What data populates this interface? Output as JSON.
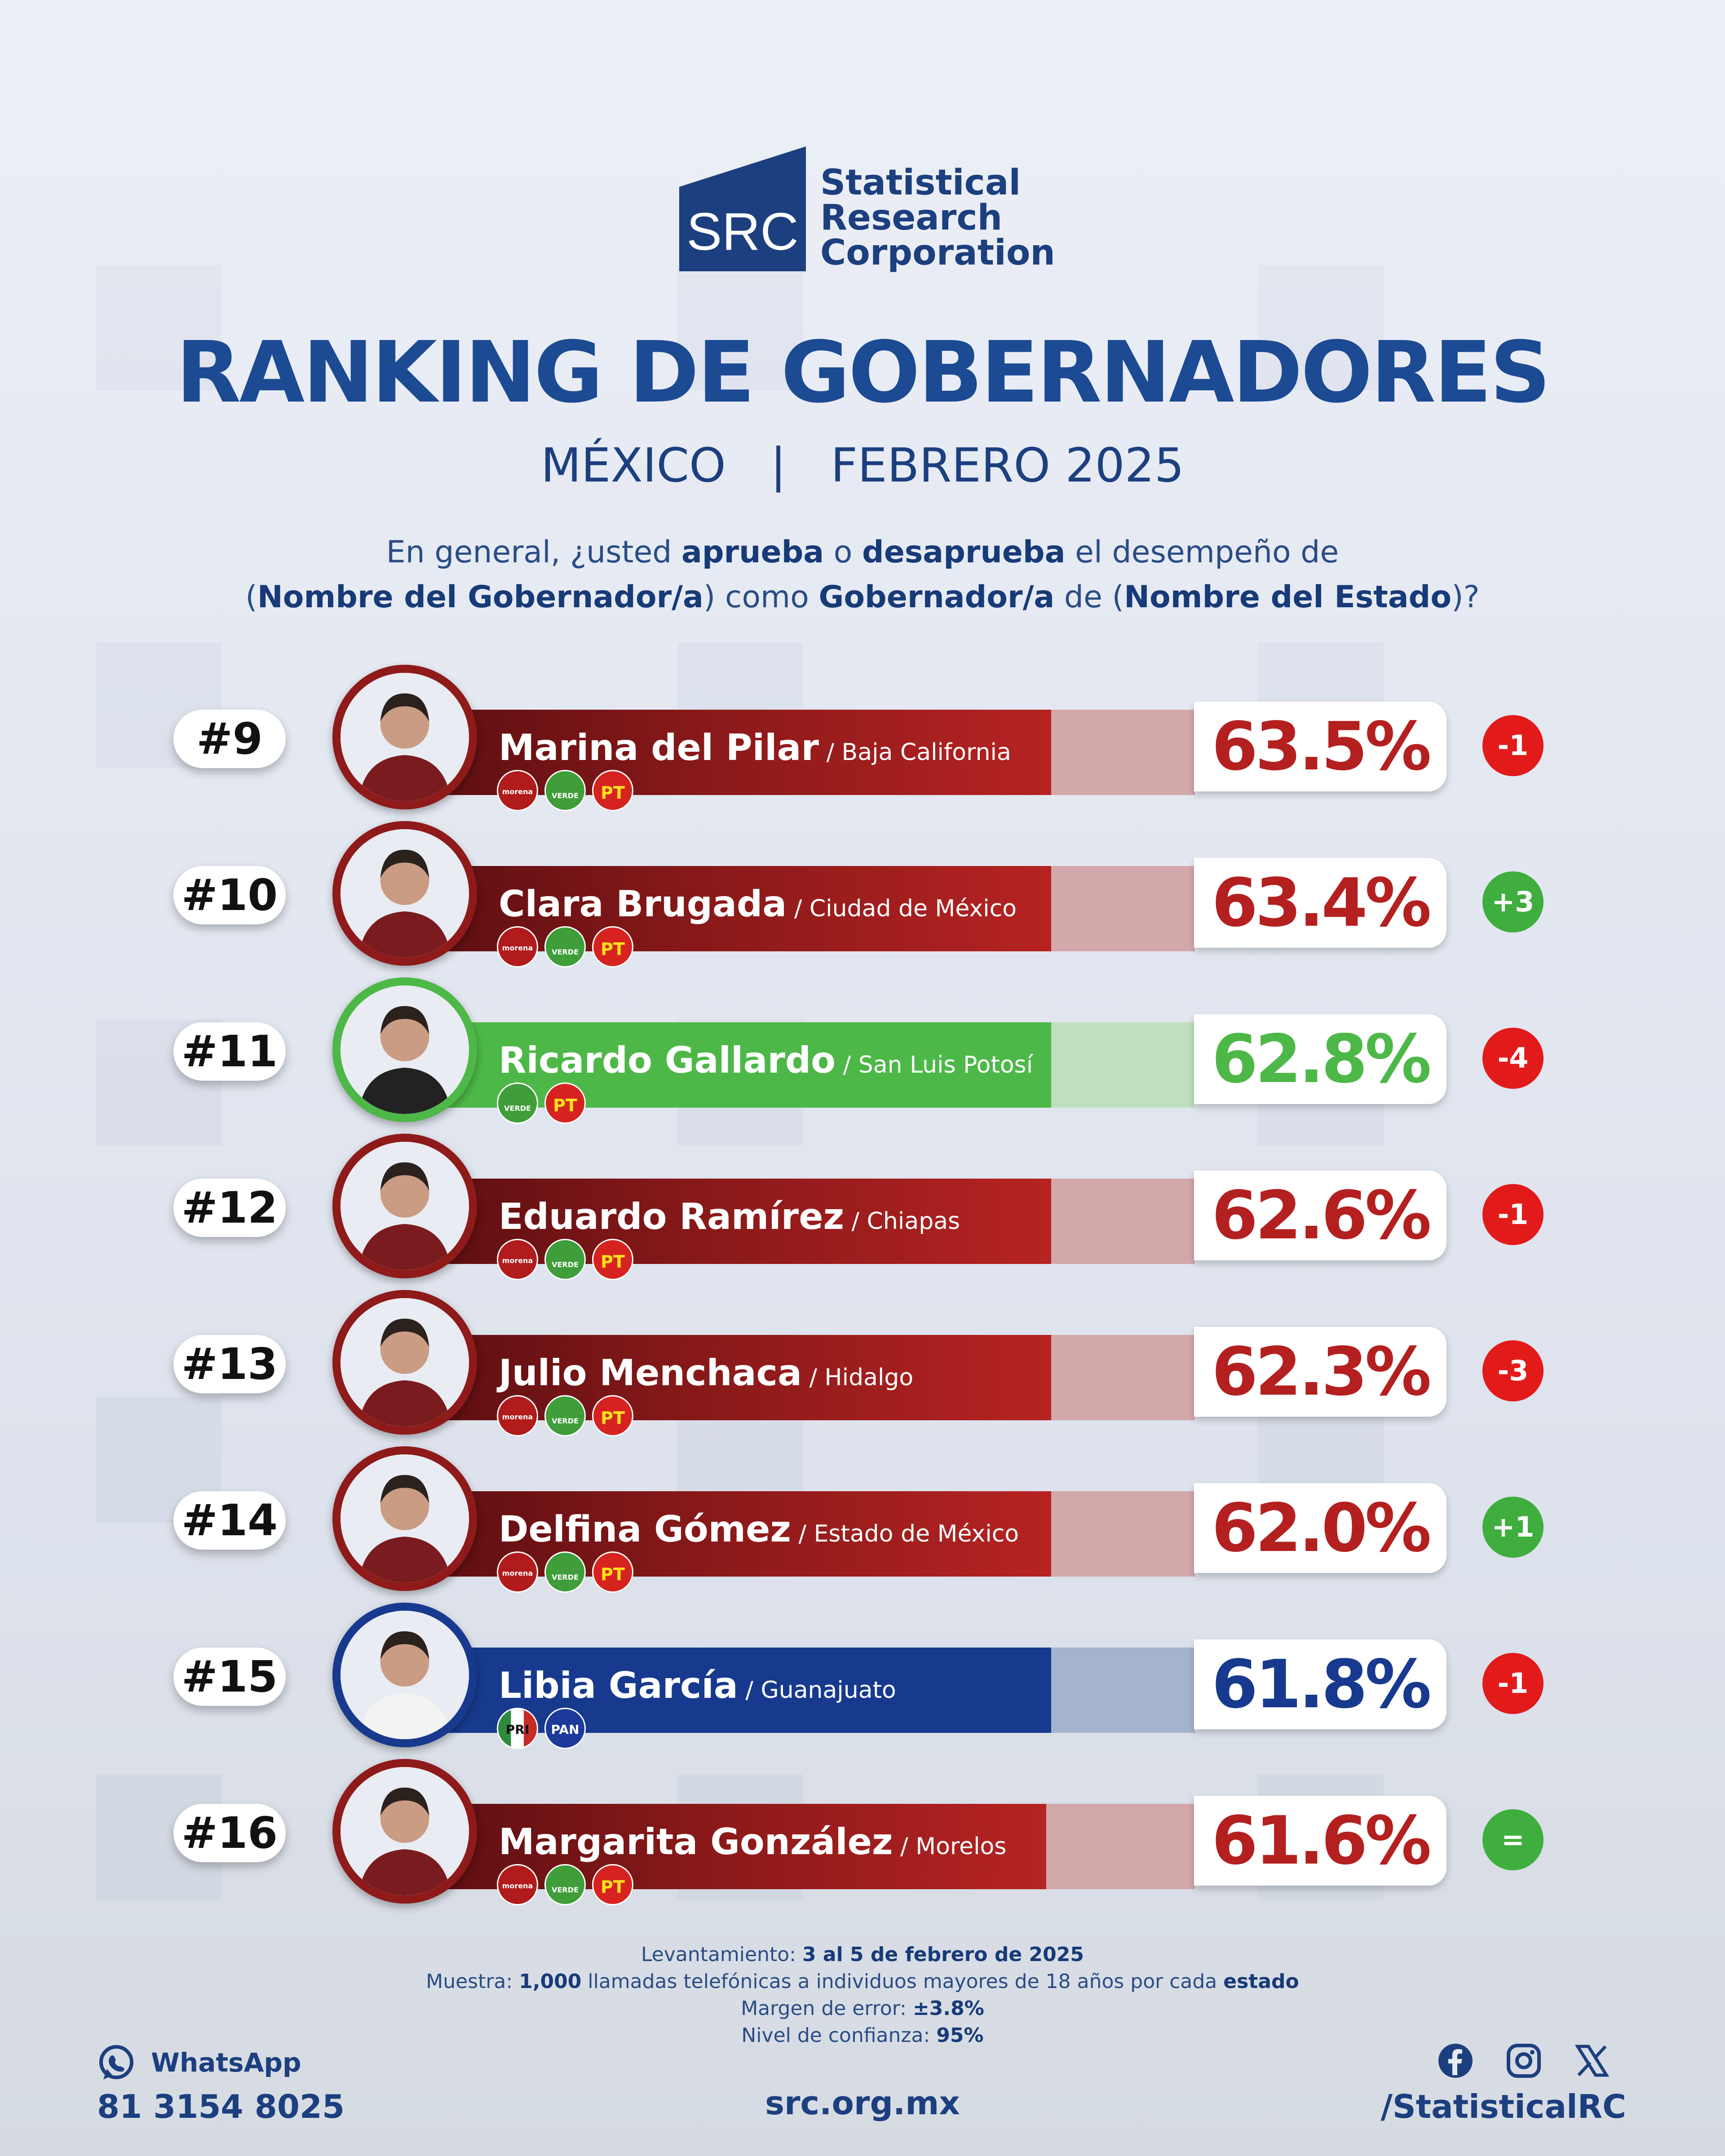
{
  "brand": {
    "mark": "SRC",
    "line1": "Statistical",
    "line2": "Research",
    "line3": "Corporation"
  },
  "title": "RANKING DE GOBERNADORES",
  "subtitle": {
    "country": "MÉXICO",
    "separator": "|",
    "period": "FEBRERO 2025"
  },
  "question": {
    "p1": "En general, ¿usted ",
    "b1": "aprueba",
    "p2": " o ",
    "b2": "desaprueba",
    "p3": " el desempeño de",
    "p4": "(",
    "b3": "Nombre del Gobernador/a",
    "p5": ") como ",
    "b4": "Gobernador/a",
    "p6": " de (",
    "b5": "Nombre del Estado",
    "p7": ")?"
  },
  "chart_data": {
    "type": "bar",
    "categories": [
      "Marina del Pilar",
      "Clara Brugada",
      "Ricardo Gallardo",
      "Eduardo Ramírez",
      "Julio Menchaca",
      "Delfina Gómez",
      "Libia García",
      "Margarita González"
    ],
    "values": [
      63.5,
      63.4,
      62.8,
      62.6,
      62.3,
      62.0,
      61.8,
      61.6
    ],
    "value_labels": [
      "63.5%",
      "63.4%",
      "62.8%",
      "62.6%",
      "62.3%",
      "62.0%",
      "61.8%",
      "61.6%"
    ],
    "ranks": [
      "#9",
      "#10",
      "#11",
      "#12",
      "#13",
      "#14",
      "#15",
      "#16"
    ],
    "states": [
      "Baja California",
      "Ciudad de México",
      "San Luis Potosí",
      "Chiapas",
      "Hidalgo",
      "Estado de México",
      "Guanajuato",
      "Morelos"
    ],
    "changes": [
      "-1",
      "+3",
      "-4",
      "-1",
      "-3",
      "+1",
      "-1",
      "="
    ],
    "parties": [
      [
        "morena",
        "VERDE",
        "PT"
      ],
      [
        "morena",
        "VERDE",
        "PT"
      ],
      [
        "VERDE",
        "PT"
      ],
      [
        "morena",
        "VERDE",
        "PT"
      ],
      [
        "morena",
        "VERDE",
        "PT"
      ],
      [
        "morena",
        "VERDE",
        "PT"
      ],
      [
        "PRI",
        "PAN"
      ],
      [
        "morena",
        "VERDE",
        "PT"
      ]
    ],
    "bar_colors": [
      "#8e1a1a",
      "#8e1a1a",
      "#4db848",
      "#8e1a1a",
      "#8e1a1a",
      "#8e1a1a",
      "#173a8e",
      "#8e1a1a"
    ],
    "track_colors": [
      "#d3a8aa",
      "#d3a8aa",
      "#bfe0bc",
      "#d3a8aa",
      "#d3a8aa",
      "#d3a8aa",
      "#a5b4ce",
      "#d3a8aa"
    ],
    "change_colors": [
      "#e31a1a",
      "#3fae3f",
      "#e31a1a",
      "#e31a1a",
      "#e31a1a",
      "#3fae3f",
      "#e31a1a",
      "#3fae3f"
    ]
  },
  "footer": {
    "field_label": "Levantamiento: ",
    "field_value": "3 al 5 de febrero de 2025",
    "sample_label": "Muestra: ",
    "sample_n": "1,000",
    "sample_text": " llamadas telefónicas a individuos mayores de 18 años por cada ",
    "sample_unit": "estado",
    "error_label": "Margen de error: ",
    "error_value": "±3.8%",
    "conf_label": "Nivel de confianza: ",
    "conf_value": "95%"
  },
  "contact": {
    "whatsapp_label": "WhatsApp",
    "whatsapp_number": "81 3154 8025",
    "website": "src.org.mx",
    "handle": "/StatisticalRC"
  }
}
